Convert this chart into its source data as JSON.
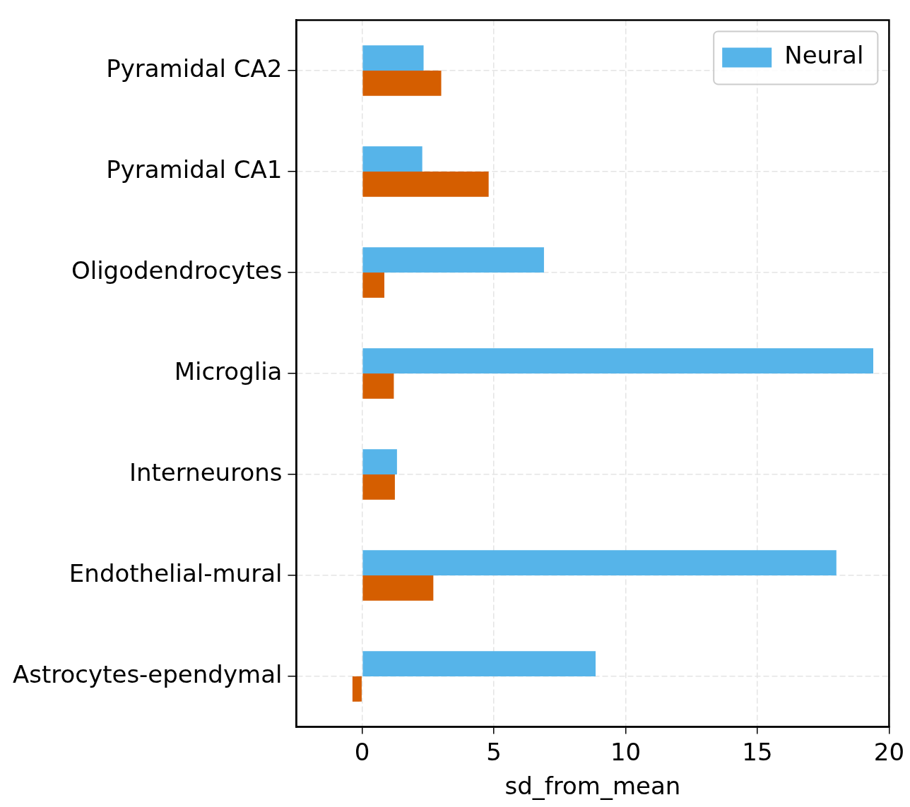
{
  "chart_data": {
    "type": "bar",
    "orientation": "horizontal",
    "xlabel": "sd_from_mean",
    "categories": [
      "Pyramidal CA2",
      "Pyramidal CA1",
      "Oligodendrocytes",
      "Microglia",
      "Interneurons",
      "Endothelial-mural",
      "Astrocytes-ependymal"
    ],
    "series": [
      {
        "name": "Neural",
        "color": "#56b4e9",
        "values": [
          2.33,
          2.28,
          6.9,
          19.4,
          1.32,
          18.0,
          8.86
        ]
      },
      {
        "color": "#d55e00",
        "values": [
          3.0,
          4.8,
          0.84,
          1.2,
          1.24,
          2.7,
          -0.37
        ]
      }
    ],
    "xlim": [
      -2.5,
      20
    ],
    "xticks": [
      0,
      5,
      10,
      15,
      20
    ],
    "grid": true,
    "legend": "top right"
  }
}
